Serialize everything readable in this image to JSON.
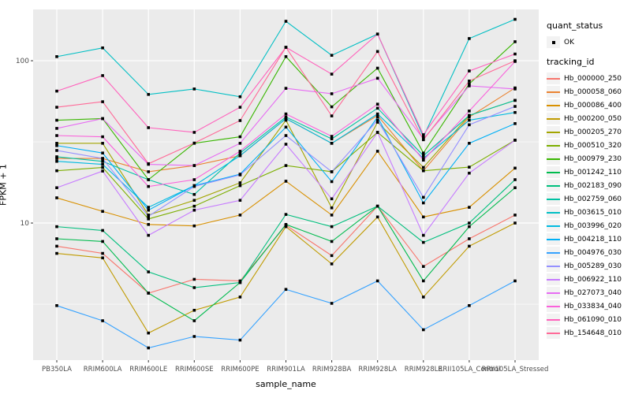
{
  "chart_data": {
    "type": "line",
    "title": "",
    "xlabel": "sample_name",
    "ylabel": "FPKM + 1",
    "y_scale": "log10",
    "ylim": [
      1.43,
      207
    ],
    "y_major_ticks": [
      10,
      100
    ],
    "y_minor_ticks": [
      3.162,
      31.62
    ],
    "grid": true,
    "legend_position": "right",
    "point_marker": "black-square",
    "categories": [
      "PB350LA",
      "RRIM600LA",
      "RRIM600LE",
      "RRIM600SE",
      "RRIM600PE",
      "RRIM901LA",
      "RRIM928BA",
      "RRIM928LA",
      "RRIM928LE",
      "RRII105LA_Control",
      "RRII105LA_Stressed"
    ],
    "series": [
      {
        "name": "Hb_000000_250",
        "color": "#F8766D",
        "values": [
          7.2,
          6.5,
          3.7,
          4.5,
          4.4,
          9.7,
          6.3,
          12.7,
          5.4,
          8.0,
          11.2
        ]
      },
      {
        "name": "Hb_000058_060",
        "color": "#EA8331",
        "values": [
          25,
          25,
          20.7,
          22.6,
          26,
          44,
          31,
          46,
          21,
          45,
          68
        ]
      },
      {
        "name": "Hb_000086_400",
        "color": "#D89000",
        "values": [
          14.3,
          11.8,
          9.8,
          9.6,
          11.2,
          18.1,
          11.2,
          27.7,
          10.9,
          12.5,
          21.8
        ]
      },
      {
        "name": "Hb_000200_050",
        "color": "#C09B00",
        "values": [
          6.5,
          6.1,
          2.1,
          2.9,
          3.5,
          9.5,
          5.6,
          10.9,
          3.5,
          7.2,
          10
        ]
      },
      {
        "name": "Hb_000205_270",
        "color": "#A3A500",
        "values": [
          31,
          31,
          11.2,
          13.8,
          17.7,
          43,
          12.4,
          41.8,
          22,
          46,
          57
        ]
      },
      {
        "name": "Hb_000510_320",
        "color": "#7CAE00",
        "values": [
          21,
          22,
          10.6,
          12.7,
          17,
          22.6,
          20.7,
          36.2,
          21,
          22.1,
          32.4
        ]
      },
      {
        "name": "Hb_000979_230",
        "color": "#39B600",
        "values": [
          43,
          44,
          18.5,
          31,
          34,
          106,
          52,
          90,
          27,
          72,
          131
        ]
      },
      {
        "name": "Hb_001242_110",
        "color": "#00BB4E",
        "values": [
          8.0,
          7.7,
          3.7,
          2.5,
          4.3,
          9.8,
          7.7,
          12.7,
          4.4,
          9.5,
          16.5
        ]
      },
      {
        "name": "Hb_002183_090",
        "color": "#00BF7D",
        "values": [
          9.5,
          9.0,
          5.0,
          4.0,
          4.3,
          11.3,
          9.5,
          12.7,
          7.6,
          10.0,
          18.5
        ]
      },
      {
        "name": "Hb_002759_060",
        "color": "#00C1A3",
        "values": [
          25.6,
          24,
          18.5,
          15,
          27,
          45,
          33,
          51,
          26,
          46,
          57
        ]
      },
      {
        "name": "Hb_003615_010",
        "color": "#00BFC4",
        "values": [
          106,
          120,
          62,
          67,
          60,
          175,
          108,
          146,
          34,
          137,
          180
        ]
      },
      {
        "name": "Hb_003996_020",
        "color": "#00BAE0",
        "values": [
          24,
          23,
          12.5,
          17,
          26,
          44,
          31,
          47,
          25,
          43,
          48
        ]
      },
      {
        "name": "Hb_004218_110",
        "color": "#00B0F6",
        "values": [
          30,
          27,
          12,
          17,
          20,
          39,
          18,
          45,
          13.3,
          31,
          41
        ]
      },
      {
        "name": "Hb_004976_030",
        "color": "#35A2FF",
        "values": [
          3.1,
          2.5,
          1.7,
          2.0,
          1.9,
          3.9,
          3.2,
          4.4,
          2.2,
          3.1,
          4.4
        ]
      },
      {
        "name": "Hb_005289_030",
        "color": "#9590FF",
        "values": [
          28,
          25,
          11,
          16.8,
          19.8,
          34.6,
          20.7,
          43,
          14.4,
          40.3,
          52.3
        ]
      },
      {
        "name": "Hb_006922_110",
        "color": "#C77CFF",
        "values": [
          16.5,
          20.9,
          8.4,
          12,
          13.8,
          30.6,
          14.1,
          36.2,
          8.4,
          20.3,
          32.4
        ]
      },
      {
        "name": "Hb_027073_040",
        "color": "#E76BF3",
        "values": [
          38.3,
          44,
          23,
          22.6,
          31,
          67.6,
          62.6,
          78,
          33,
          70,
          67
        ]
      },
      {
        "name": "Hb_033834_040",
        "color": "#FA62DB",
        "values": [
          34.6,
          34,
          16.8,
          18.5,
          27.7,
          47,
          34.2,
          54,
          24.4,
          49,
          99
        ]
      },
      {
        "name": "Hb_061090_010",
        "color": "#FF62BC",
        "values": [
          65,
          81,
          38.7,
          36.2,
          51.7,
          121,
          82.7,
          146,
          35,
          86.5,
          110
        ]
      },
      {
        "name": "Hb_154648_010",
        "color": "#FF6A98",
        "values": [
          51.7,
          55.9,
          23.2,
          31.1,
          42.8,
          121,
          45.7,
          114,
          32.6,
          75,
          100
        ]
      }
    ]
  },
  "legend": {
    "quant_status_title": "quant_status",
    "quant_status_items": [
      {
        "label": "OK",
        "symbol": "black-square"
      }
    ],
    "tracking_title": "tracking_id"
  },
  "colors": {
    "panel_bg": "#EBEBEB",
    "grid": "#FFFFFF",
    "axis_text": "#4D4D4D",
    "tick_mark": "#333333",
    "point": "#000000",
    "legend_key_bg": "#F2F2F2"
  },
  "y_tick_labels": [
    "100",
    "10"
  ]
}
